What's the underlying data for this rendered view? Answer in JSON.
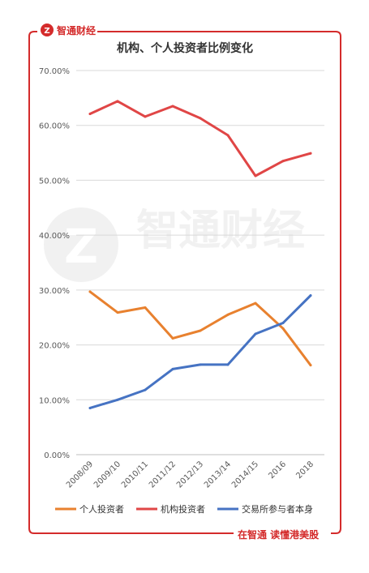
{
  "brand": {
    "logo_text": "智通财经",
    "watermark_text": "智通财经",
    "footer_slogan": "在智通 读懂港美股",
    "accent_color": "#d42b2b"
  },
  "chart_data": {
    "type": "line",
    "title": "机构、个人投资者比例变化",
    "categories": [
      "2008/09",
      "2009/10",
      "2010/11",
      "2011/12",
      "2012/13",
      "2013/14",
      "2014/15",
      "2016",
      "2018"
    ],
    "y_ticks": [
      "0.00%",
      "10.00%",
      "20.00%",
      "30.00%",
      "40.00%",
      "50.00%",
      "60.00%",
      "70.00%"
    ],
    "ylim": [
      0,
      70
    ],
    "grid": true,
    "legend_position": "bottom",
    "series": [
      {
        "name": "个人投资者",
        "color": "#e8812f",
        "values": [
          29.7,
          25.9,
          26.8,
          21.2,
          22.6,
          25.5,
          27.6,
          23.0,
          16.3
        ]
      },
      {
        "name": "机构投资者",
        "color": "#e04646",
        "values": [
          62.1,
          64.4,
          61.6,
          63.5,
          61.3,
          58.2,
          50.8,
          53.5,
          54.9
        ]
      },
      {
        "name": "交易所参与者本身",
        "color": "#4673c3",
        "values": [
          8.5,
          10.0,
          11.8,
          15.6,
          16.4,
          16.4,
          22.0,
          24.0,
          29.0
        ]
      }
    ]
  }
}
